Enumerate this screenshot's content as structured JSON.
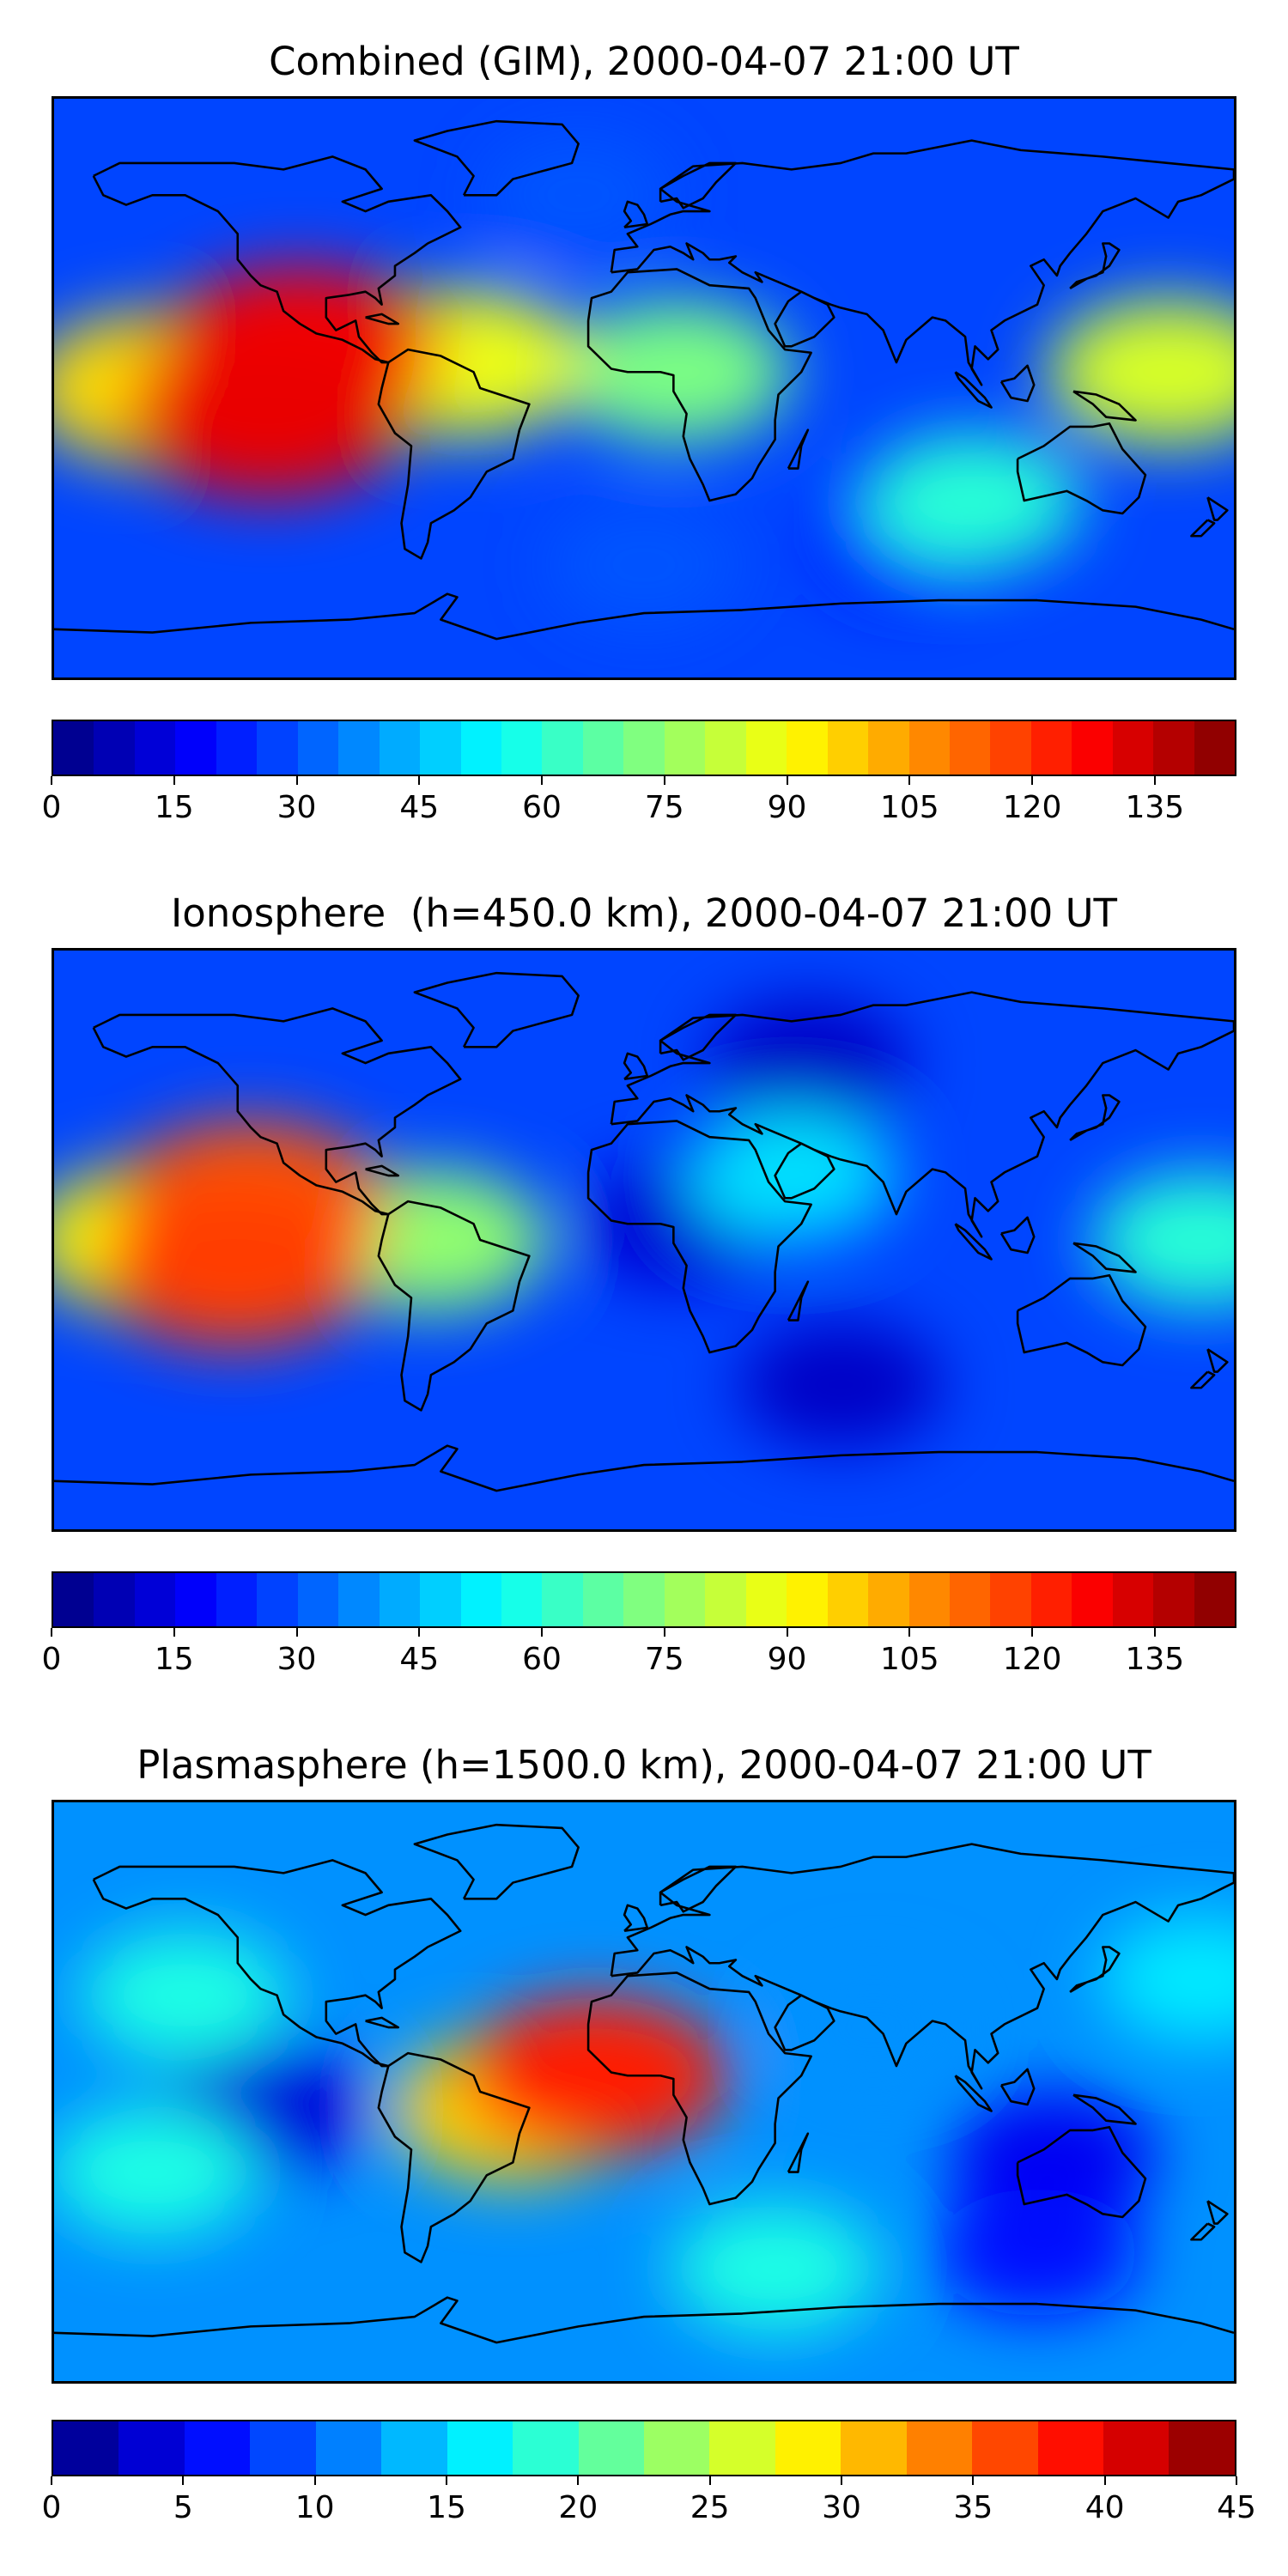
{
  "panels": [
    {
      "title": "Combined (GIM), 2000-04-07 21:00 UT",
      "colorbar": {
        "min": 0,
        "max": 145,
        "levels": 29,
        "tick_labels": [
          "0",
          "15",
          "30",
          "45",
          "60",
          "75",
          "90",
          "105",
          "120",
          "135"
        ]
      },
      "field_blobs": [
        {
          "lon": -105,
          "lat": 12,
          "value": 128
        },
        {
          "lon": -115,
          "lat": -8,
          "value": 130
        },
        {
          "lon": -150,
          "lat": 0,
          "value": 95
        },
        {
          "lon": -55,
          "lat": 8,
          "value": 88
        },
        {
          "lon": 10,
          "lat": 5,
          "value": 72
        },
        {
          "lon": 160,
          "lat": 5,
          "value": 85
        },
        {
          "lon": 100,
          "lat": -35,
          "value": 60
        },
        {
          "lon": 80,
          "lat": -48,
          "value": 22
        },
        {
          "lon": 0,
          "lat": -55,
          "value": 30
        },
        {
          "lon": -20,
          "lat": 60,
          "value": 30
        }
      ]
    },
    {
      "title": "Ionosphere  (h=450.0 km), 2000-04-07 21:00 UT",
      "colorbar": {
        "min": 0,
        "max": 145,
        "levels": 29,
        "tick_labels": [
          "0",
          "15",
          "30",
          "45",
          "60",
          "75",
          "90",
          "105",
          "120",
          "135"
        ]
      },
      "field_blobs": [
        {
          "lon": -120,
          "lat": 12,
          "value": 115
        },
        {
          "lon": -125,
          "lat": -8,
          "value": 118
        },
        {
          "lon": -150,
          "lat": 0,
          "value": 90
        },
        {
          "lon": -65,
          "lat": 0,
          "value": 75
        },
        {
          "lon": 45,
          "lat": 20,
          "value": 50
        },
        {
          "lon": 170,
          "lat": 0,
          "value": 60
        },
        {
          "lon": 10,
          "lat": 5,
          "value": 12
        },
        {
          "lon": 60,
          "lat": -45,
          "value": 10
        },
        {
          "lon": 50,
          "lat": 55,
          "value": 10
        }
      ]
    },
    {
      "title": "Plasmasphere (h=1500.0 km), 2000-04-07 21:00 UT",
      "colorbar": {
        "min": 0,
        "max": 45,
        "levels": 18,
        "tick_labels": [
          "0",
          "5",
          "10",
          "15",
          "20",
          "25",
          "30",
          "35",
          "40",
          "45"
        ]
      },
      "field_blobs": [
        {
          "lon": -15,
          "lat": 5,
          "value": 38
        },
        {
          "lon": -40,
          "lat": -5,
          "value": 30
        },
        {
          "lon": -140,
          "lat": 30,
          "value": 18
        },
        {
          "lon": -115,
          "lat": -5,
          "value": 4
        },
        {
          "lon": 125,
          "lat": -20,
          "value": 5
        },
        {
          "lon": 70,
          "lat": 20,
          "value": 12
        },
        {
          "lon": 170,
          "lat": 35,
          "value": 16
        },
        {
          "lon": -150,
          "lat": -25,
          "value": 18
        },
        {
          "lon": 40,
          "lat": -55,
          "value": 18
        },
        {
          "lon": 120,
          "lat": -50,
          "value": 6
        }
      ]
    }
  ],
  "colormap": "jet",
  "coastline_color": "#000000"
}
